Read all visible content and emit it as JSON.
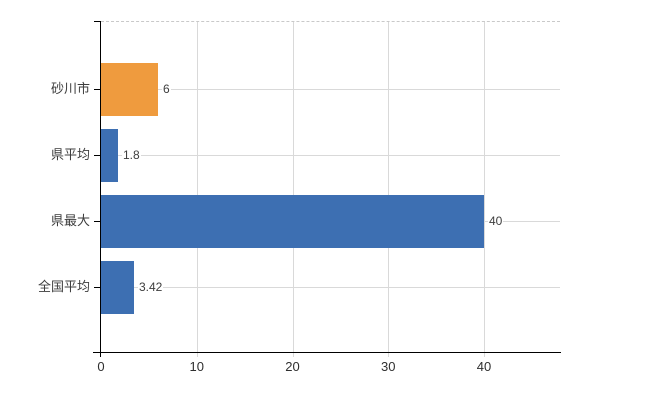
{
  "chart_data": {
    "type": "bar",
    "orientation": "horizontal",
    "title": "",
    "categories": [
      "砂川市",
      "県平均",
      "県最大",
      "全国平均"
    ],
    "values": [
      6,
      1.8,
      40,
      3.42
    ],
    "value_labels": [
      "6",
      "1.8",
      "40",
      "3.42"
    ],
    "x_ticks": [
      0,
      10,
      20,
      30,
      40
    ],
    "x_tick_labels": [
      "0",
      "10",
      "20",
      "30",
      "40"
    ],
    "xlim": [
      0,
      48
    ],
    "grid": true,
    "legend_position": "none"
  },
  "colors": {
    "bar_colors": [
      "#ef9b3e",
      "#3d6fb2",
      "#3d6fb2",
      "#3d6fb2"
    ],
    "bar_highlight": "#ef9b3e",
    "bar_default": "#3d6fb2",
    "gridline": "#d9d9d9",
    "top_border": "#c9c9c9",
    "axis": "#000000",
    "value_label_text": "#3d3d3d",
    "tick_label_text": "#2f2f2f",
    "background": "#ffffff"
  }
}
